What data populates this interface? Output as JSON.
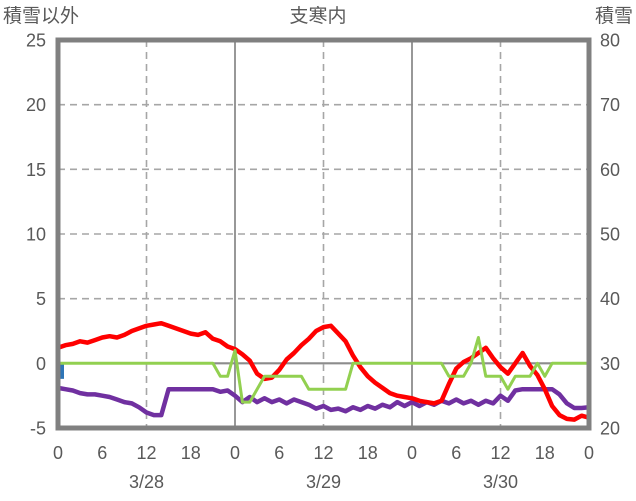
{
  "header": {
    "left_axis_title": "積雪以外",
    "station_title": "支寒内",
    "right_axis_title": "積雪"
  },
  "chart_data": {
    "type": "line",
    "title": "支寒内",
    "left_axis": {
      "title": "積雪以外",
      "tick_labels": [
        "25",
        "20",
        "15",
        "10",
        "5",
        "0",
        "-5"
      ],
      "tick_values": [
        25,
        20,
        15,
        10,
        5,
        0,
        -5
      ],
      "range": [
        -5,
        25
      ]
    },
    "right_axis": {
      "title": "積雪",
      "tick_labels": [
        "80",
        "70",
        "60",
        "50",
        "40",
        "30",
        "20"
      ],
      "tick_values": [
        80,
        70,
        60,
        50,
        40,
        30,
        20
      ],
      "range": [
        20,
        80
      ]
    },
    "x_axis": {
      "range_hours": [
        0,
        72
      ],
      "hour_tick_labels": [
        "0",
        "6",
        "12",
        "18",
        "0",
        "6",
        "12",
        "18",
        "0",
        "6",
        "12",
        "18",
        "0"
      ],
      "hour_tick_values": [
        0,
        6,
        12,
        18,
        24,
        30,
        36,
        42,
        48,
        54,
        60,
        66,
        72
      ],
      "date_labels": [
        {
          "label": "3/28",
          "hour": 12
        },
        {
          "label": "3/29",
          "hour": 36
        },
        {
          "label": "3/30",
          "hour": 60
        }
      ]
    },
    "gridlines": {
      "horizontal_dashed_left_values": [
        20,
        15,
        10,
        5
      ],
      "horizontal_solid_left_values": [
        0
      ],
      "vertical_dashed_hours": [
        12,
        36,
        60
      ],
      "vertical_solid_hours": [
        24,
        48
      ]
    },
    "colors": {
      "frame": "#808080",
      "grid_dashed": "#A6A6A6",
      "grid_solid": "#8C8C8C",
      "text": "#595959",
      "red": "#FF0000",
      "purple": "#7030A0",
      "green": "#92D050",
      "blue": "#2E75B6"
    },
    "bar": {
      "name": "blue-bar",
      "axis": "left",
      "hour": 0,
      "from_value": 0,
      "to_value": -1.2,
      "color": "#2E75B6"
    },
    "series": [
      {
        "name": "purple-line",
        "axis": "left",
        "color": "#7030A0",
        "width": 4.5,
        "values": [
          -1.9,
          -2.0,
          -2.1,
          -2.3,
          -2.4,
          -2.4,
          -2.5,
          -2.6,
          -2.8,
          -3.0,
          -3.1,
          -3.4,
          -3.8,
          -4.0,
          -4.0,
          -2.0,
          -2.0,
          -2.0,
          -2.0,
          -2.0,
          -2.0,
          -2.0,
          -2.2,
          -2.1,
          -2.5,
          -3.0,
          -2.6,
          -3.0,
          -2.7,
          -3.0,
          -2.8,
          -3.1,
          -2.8,
          -3.0,
          -3.2,
          -3.5,
          -3.3,
          -3.6,
          -3.5,
          -3.7,
          -3.4,
          -3.6,
          -3.3,
          -3.5,
          -3.2,
          -3.4,
          -3.0,
          -3.3,
          -3.0,
          -3.3,
          -3.0,
          -3.2,
          -2.9,
          -3.1,
          -2.8,
          -3.1,
          -2.9,
          -3.2,
          -2.9,
          -3.1,
          -2.5,
          -2.9,
          -2.1,
          -2.0,
          -2.0,
          -2.0,
          -2.0,
          -2.0,
          -2.4,
          -3.1,
          -3.45,
          -3.45,
          -3.4
        ]
      },
      {
        "name": "red-line",
        "axis": "left",
        "color": "#FF0000",
        "width": 4.5,
        "values": [
          1.2,
          1.4,
          1.5,
          1.7,
          1.6,
          1.8,
          2.0,
          2.1,
          2.0,
          2.2,
          2.5,
          2.7,
          2.9,
          3.0,
          3.1,
          2.9,
          2.7,
          2.5,
          2.3,
          2.2,
          2.4,
          1.9,
          1.7,
          1.3,
          1.1,
          0.7,
          0.2,
          -0.8,
          -1.2,
          -1.1,
          -0.5,
          0.3,
          0.8,
          1.4,
          1.9,
          2.5,
          2.8,
          2.9,
          2.3,
          1.7,
          0.6,
          -0.3,
          -1.0,
          -1.5,
          -1.9,
          -2.3,
          -2.5,
          -2.6,
          -2.7,
          -2.9,
          -3.0,
          -3.1,
          -2.9,
          -1.6,
          -0.4,
          0.1,
          0.4,
          0.8,
          1.2,
          0.4,
          -0.3,
          -0.8,
          0.0,
          0.8,
          -0.2,
          -0.9,
          -2.0,
          -3.3,
          -4.0,
          -4.3,
          -4.35,
          -4.05,
          -4.2
        ]
      },
      {
        "name": "green-snow-depth-line",
        "axis": "right",
        "color": "#92D050",
        "width": 3,
        "values": [
          30,
          30,
          30,
          30,
          30,
          30,
          30,
          30,
          30,
          30,
          30,
          30,
          30,
          30,
          30,
          30,
          30,
          30,
          30,
          30,
          30,
          30,
          28,
          28,
          32,
          24,
          24,
          26,
          28,
          28,
          28,
          28,
          28,
          28,
          26,
          26,
          26,
          26,
          26,
          26,
          30,
          30,
          30,
          30,
          30,
          30,
          30,
          30,
          30,
          30,
          30,
          30,
          30,
          28,
          28,
          28,
          30,
          34,
          28,
          28,
          28,
          26,
          28,
          28,
          28,
          30,
          28,
          30,
          30,
          30,
          30,
          30,
          30
        ]
      }
    ]
  }
}
